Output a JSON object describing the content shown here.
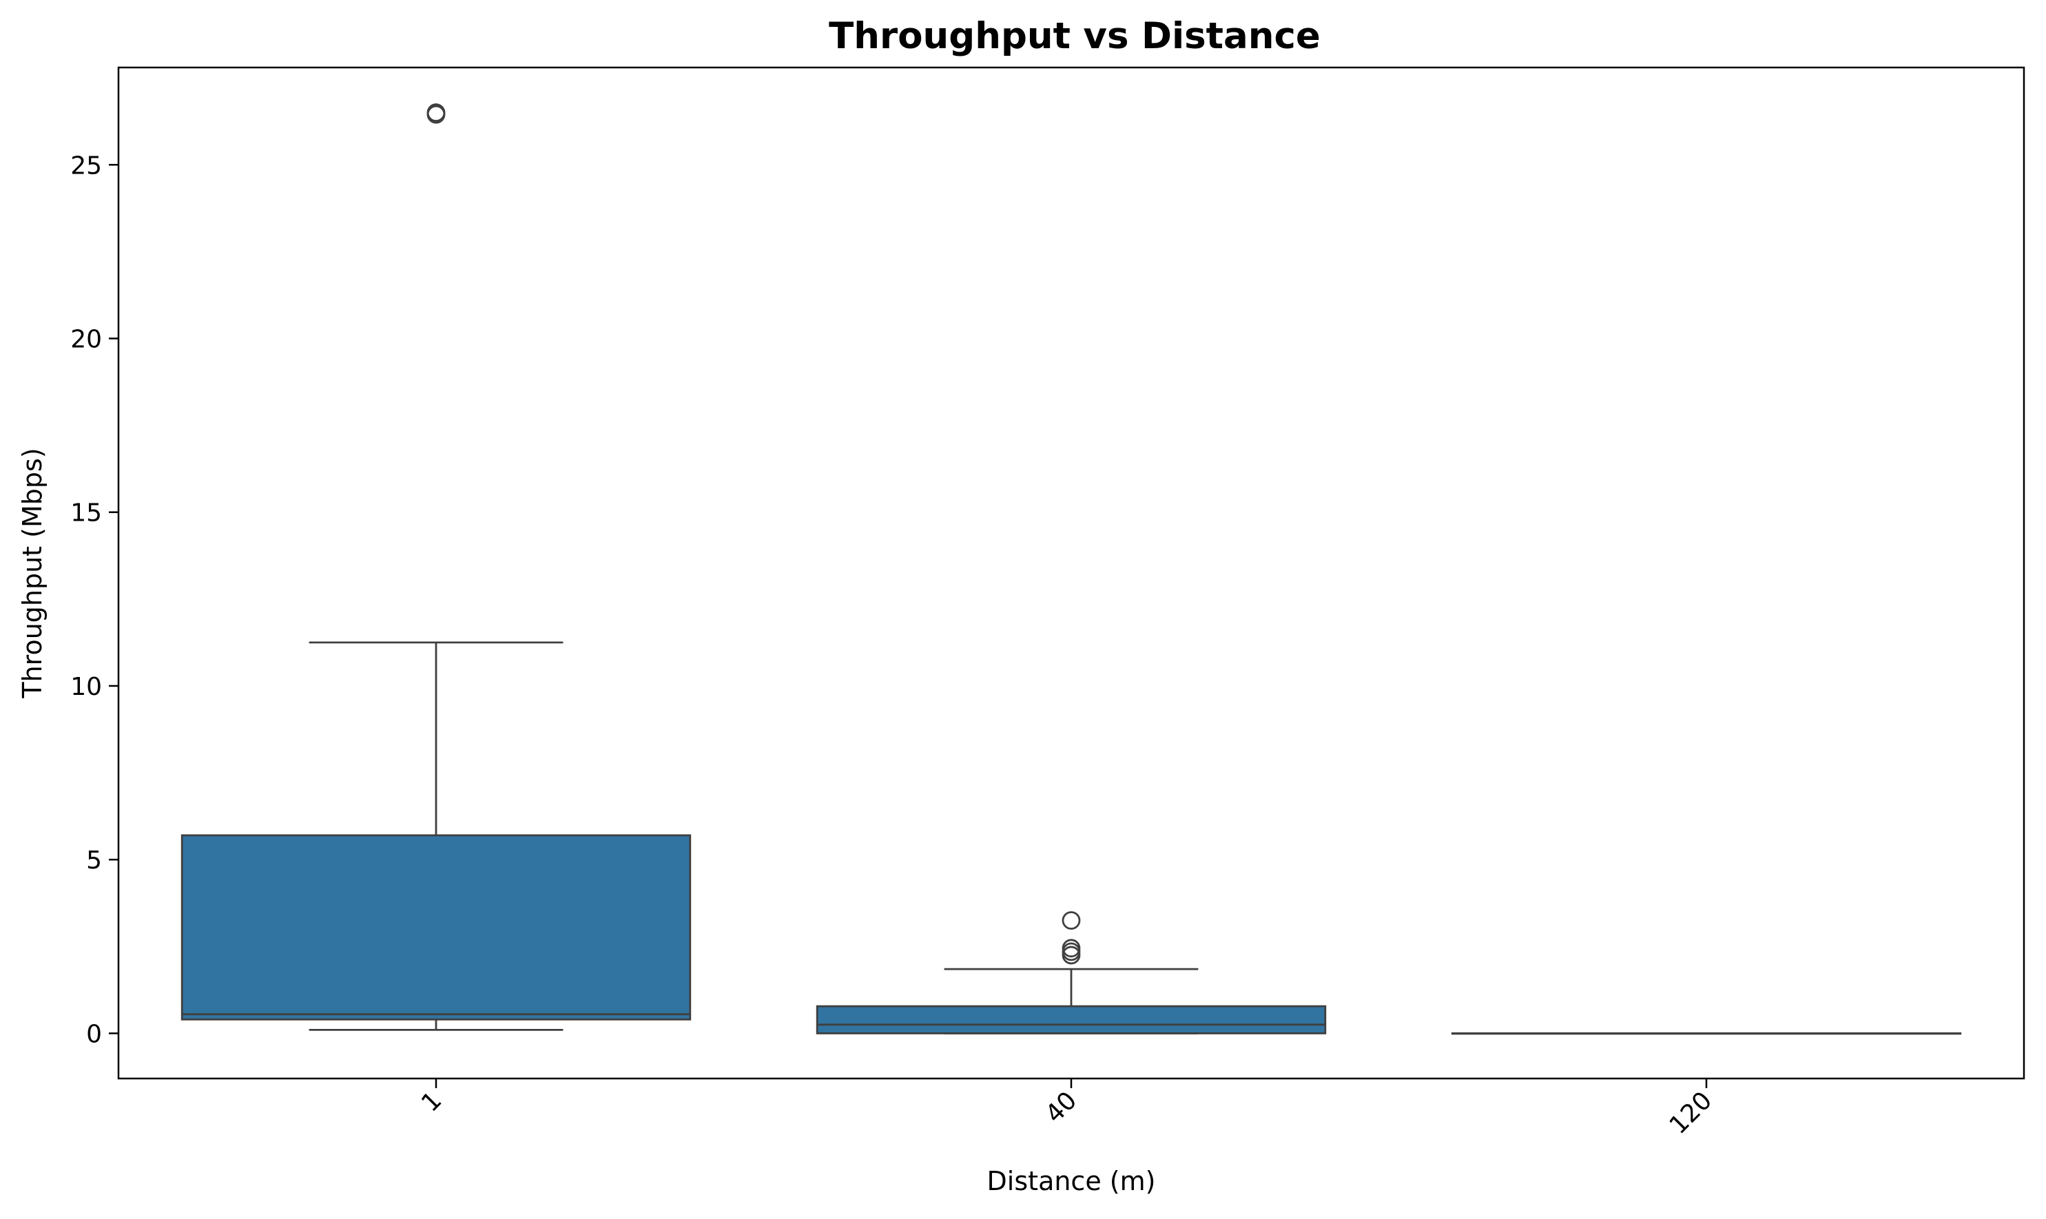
{
  "colors": {
    "box_fill": "#3274a1",
    "line": "#3f3f3f",
    "axis": "#000000",
    "background": "#ffffff"
  },
  "chart_data": {
    "type": "box",
    "title": "Throughput vs Distance",
    "xlabel": "Distance (m)",
    "ylabel": "Throughput (Mbps)",
    "ylim": [
      -1.3,
      27.8
    ],
    "yticks": [
      0,
      5,
      10,
      15,
      20,
      25
    ],
    "categories": [
      "1",
      "40",
      "120"
    ],
    "boxes": [
      {
        "category": "1",
        "whisker_low": 0.1,
        "q1": 0.4,
        "median": 0.55,
        "q3": 5.7,
        "whisker_high": 11.25,
        "outliers": [
          26.45,
          26.5
        ]
      },
      {
        "category": "40",
        "whisker_low": 0.0,
        "q1": 0.0,
        "median": 0.25,
        "q3": 0.78,
        "whisker_high": 1.85,
        "outliers": [
          2.25,
          2.35,
          2.45,
          3.25
        ]
      },
      {
        "category": "120",
        "whisker_low": 0.0,
        "q1": 0.0,
        "median": 0.0,
        "q3": 0.0,
        "whisker_high": 0.0,
        "outliers": []
      }
    ]
  }
}
